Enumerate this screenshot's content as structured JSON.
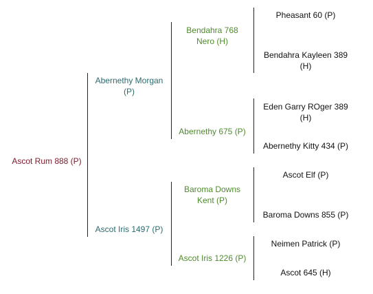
{
  "subject": {
    "name": "Ascot Rum 888 (P)"
  },
  "sire": {
    "line1": "Abernethy Morgan",
    "line2": "(P)"
  },
  "dam": {
    "name": "Ascot Iris 1497 (P)"
  },
  "sire_sire": {
    "line1": "Bendahra 768",
    "line2": "Nero (H)"
  },
  "sire_dam": {
    "name": "Abernethy 675 (P)"
  },
  "dam_sire": {
    "line1": "Baroma Downs",
    "line2": "Kent (P)"
  },
  "dam_dam": {
    "name": "Ascot Iris 1226 (P)"
  },
  "ggp": [
    {
      "line1": "Pheasant 60 (P)",
      "line2": ""
    },
    {
      "line1": "Bendahra Kayleen 389",
      "line2": "(H)"
    },
    {
      "line1": "Eden Garry ROger 389",
      "line2": "(H)"
    },
    {
      "line1": "Abernethy Kitty 434 (P)",
      "line2": ""
    },
    {
      "line1": "Ascot Elf (P)",
      "line2": ""
    },
    {
      "line1": "Baroma Downs 855 (P)",
      "line2": ""
    },
    {
      "line1": "Neimen Patrick (P)",
      "line2": ""
    },
    {
      "line1": "Ascot 645 (H)",
      "line2": ""
    }
  ],
  "colors": {
    "subject": "#7a1a2a",
    "parents": "#2b6a6e",
    "grandparents": "#4f8a2e",
    "great_grandparents": "#111111",
    "lines": "#222222"
  }
}
